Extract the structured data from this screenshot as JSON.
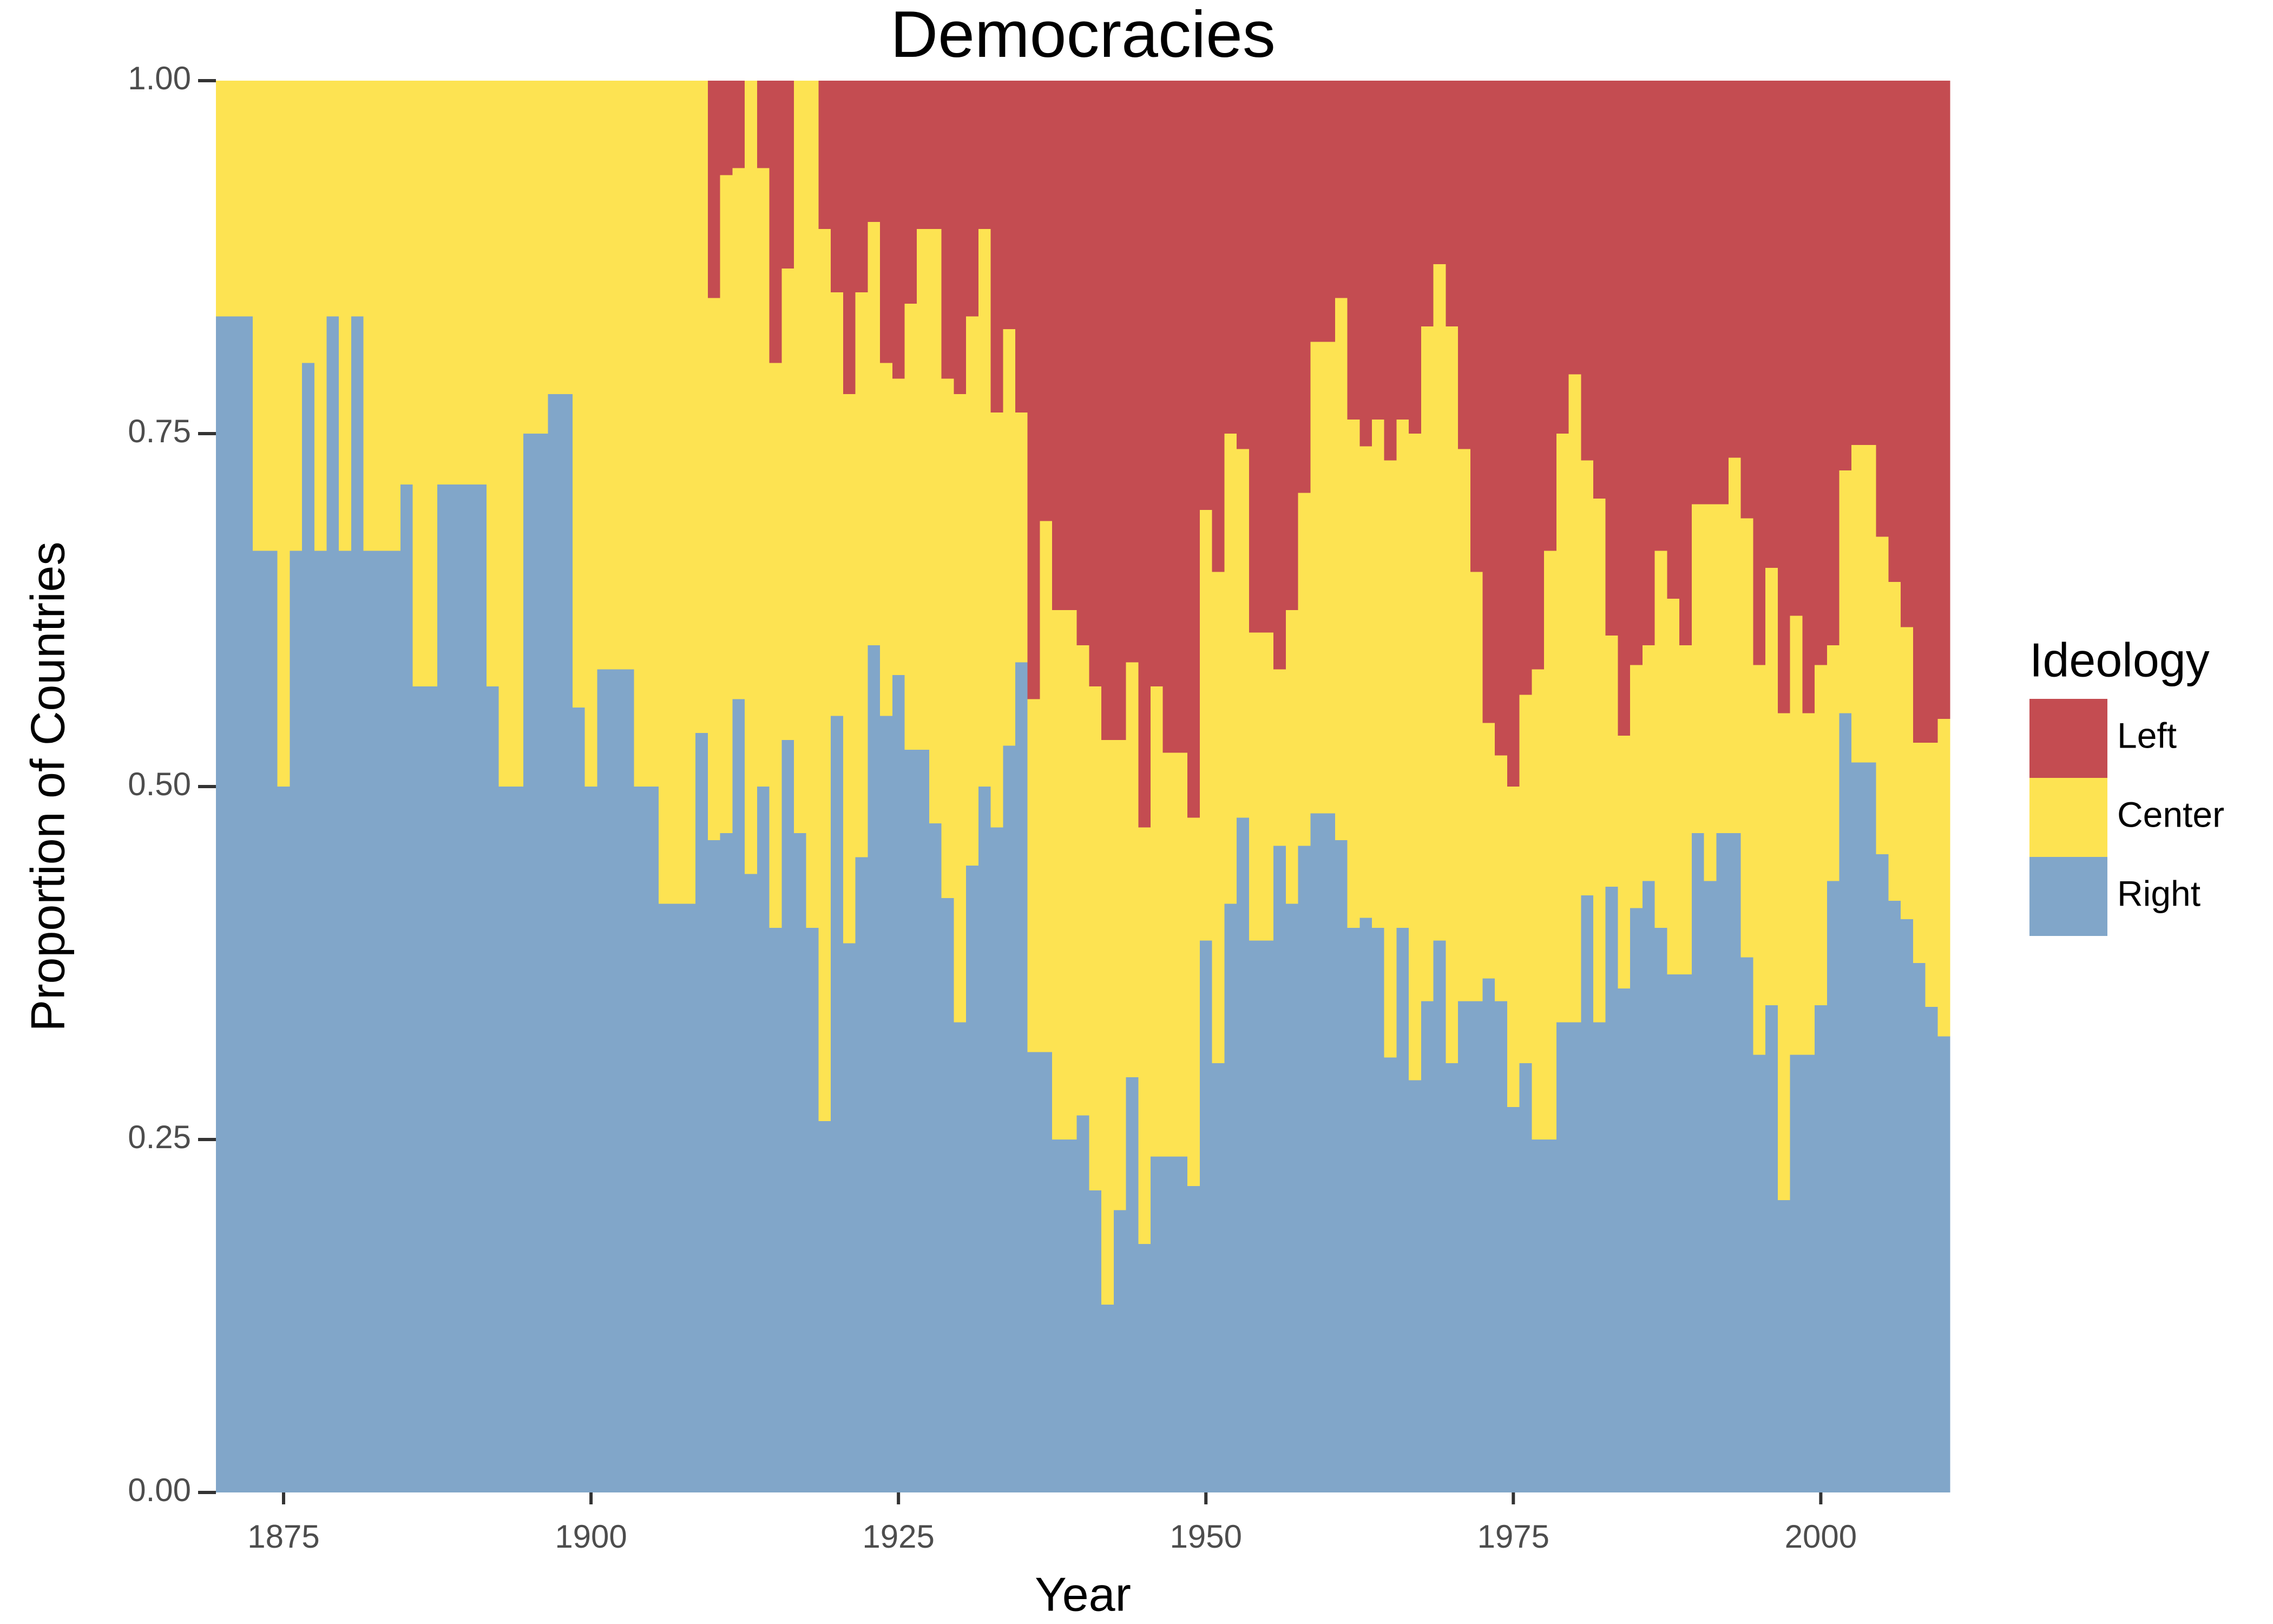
{
  "chart_data": {
    "type": "stacked_bar",
    "title": "Democracies",
    "x_label": "Year",
    "y_label": "Proportion of Countries",
    "legend_title": "Ideology",
    "legend": "right",
    "x": [
      1870,
      1871,
      1872,
      1873,
      1874,
      1875,
      1876,
      1877,
      1878,
      1879,
      1880,
      1881,
      1882,
      1883,
      1884,
      1885,
      1886,
      1887,
      1888,
      1889,
      1890,
      1891,
      1892,
      1893,
      1894,
      1895,
      1896,
      1897,
      1898,
      1899,
      1900,
      1901,
      1902,
      1903,
      1904,
      1905,
      1906,
      1907,
      1908,
      1909,
      1910,
      1911,
      1912,
      1913,
      1914,
      1915,
      1916,
      1917,
      1918,
      1919,
      1920,
      1921,
      1922,
      1923,
      1924,
      1925,
      1926,
      1927,
      1928,
      1929,
      1930,
      1931,
      1932,
      1933,
      1934,
      1935,
      1936,
      1937,
      1938,
      1939,
      1940,
      1941,
      1942,
      1943,
      1944,
      1945,
      1946,
      1947,
      1948,
      1949,
      1950,
      1951,
      1952,
      1953,
      1954,
      1955,
      1956,
      1957,
      1958,
      1959,
      1960,
      1961,
      1962,
      1963,
      1964,
      1965,
      1966,
      1967,
      1968,
      1969,
      1970,
      1971,
      1972,
      1973,
      1974,
      1975,
      1976,
      1977,
      1978,
      1979,
      1980,
      1981,
      1982,
      1983,
      1984,
      1985,
      1986,
      1987,
      1988,
      1989,
      1990,
      1991,
      1992,
      1993,
      1994,
      1995,
      1996,
      1997,
      1998,
      1999,
      2000,
      2001,
      2002,
      2003,
      2004,
      2005,
      2006,
      2007,
      2008,
      2009,
      2010
    ],
    "series": [
      {
        "name": "Left",
        "color": "#c44c51",
        "values": [
          0,
          0,
          0,
          0,
          0,
          0,
          0,
          0,
          0,
          0,
          0,
          0,
          0,
          0,
          0,
          0,
          0,
          0,
          0,
          0,
          0,
          0,
          0,
          0,
          0,
          0,
          0,
          0,
          0,
          0,
          0,
          0,
          0,
          0,
          0,
          0,
          0,
          0,
          0,
          0,
          0.154,
          0.067,
          0.062,
          0,
          0.062,
          0.2,
          0.133,
          0,
          0,
          0.105,
          0.15,
          0.222,
          0.15,
          0.1,
          0.2,
          0.211,
          0.158,
          0.105,
          0.105,
          0.211,
          0.222,
          0.167,
          0.105,
          0.235,
          0.176,
          0.235,
          0.438,
          0.312,
          0.375,
          0.375,
          0.4,
          0.429,
          0.467,
          0.467,
          0.412,
          0.529,
          0.429,
          0.476,
          0.476,
          0.522,
          0.304,
          0.348,
          0.25,
          0.261,
          0.391,
          0.391,
          0.417,
          0.375,
          0.292,
          0.185,
          0.185,
          0.154,
          0.24,
          0.259,
          0.24,
          0.269,
          0.24,
          0.25,
          0.174,
          0.13,
          0.174,
          0.261,
          0.348,
          0.455,
          0.478,
          0.5,
          0.435,
          0.417,
          0.333,
          0.25,
          0.208,
          0.269,
          0.296,
          0.393,
          0.464,
          0.414,
          0.4,
          0.333,
          0.367,
          0.4,
          0.3,
          0.3,
          0.3,
          0.267,
          0.31,
          0.414,
          0.345,
          0.448,
          0.379,
          0.448,
          0.414,
          0.4,
          0.276,
          0.258,
          0.258,
          0.323,
          0.355,
          0.387,
          0.469,
          0.469,
          0.452
        ]
      },
      {
        "name": "Center",
        "color": "#fde352",
        "values": [
          0.167,
          0.167,
          0.167,
          0.333,
          0.333,
          0.5,
          0.333,
          0.2,
          0.333,
          0.167,
          0.333,
          0.167,
          0.333,
          0.333,
          0.333,
          0.286,
          0.429,
          0.429,
          0.286,
          0.286,
          0.286,
          0.286,
          0.429,
          0.5,
          0.5,
          0.25,
          0.25,
          0.222,
          0.222,
          0.444,
          0.5,
          0.417,
          0.417,
          0.417,
          0.5,
          0.5,
          0.583,
          0.583,
          0.583,
          0.462,
          0.384,
          0.466,
          0.376,
          0.562,
          0.438,
          0.4,
          0.334,
          0.533,
          0.6,
          0.632,
          0.3,
          0.389,
          0.4,
          0.3,
          0.25,
          0.21,
          0.316,
          0.369,
          0.421,
          0.368,
          0.445,
          0.389,
          0.395,
          0.294,
          0.295,
          0.177,
          0.25,
          0.376,
          0.375,
          0.375,
          0.333,
          0.357,
          0.4,
          0.333,
          0.294,
          0.295,
          0.333,
          0.286,
          0.286,
          0.261,
          0.305,
          0.348,
          0.333,
          0.261,
          0.218,
          0.218,
          0.125,
          0.208,
          0.25,
          0.334,
          0.334,
          0.384,
          0.36,
          0.334,
          0.36,
          0.423,
          0.36,
          0.458,
          0.478,
          0.479,
          0.522,
          0.391,
          0.304,
          0.181,
          0.174,
          0.227,
          0.261,
          0.333,
          0.417,
          0.417,
          0.459,
          0.308,
          0.371,
          0.178,
          0.179,
          0.172,
          0.167,
          0.267,
          0.266,
          0.233,
          0.233,
          0.267,
          0.233,
          0.266,
          0.311,
          0.276,
          0.31,
          0.345,
          0.311,
          0.242,
          0.241,
          0.167,
          0.172,
          0.225,
          0.225,
          0.225,
          0.226,
          0.207,
          0.156,
          0.187,
          0.225
        ]
      },
      {
        "name": "Right",
        "color": "#81a6c9",
        "values": [
          0.833,
          0.833,
          0.833,
          0.667,
          0.667,
          0.5,
          0.667,
          0.8,
          0.667,
          0.833,
          0.667,
          0.833,
          0.667,
          0.667,
          0.667,
          0.714,
          0.571,
          0.571,
          0.714,
          0.714,
          0.714,
          0.714,
          0.571,
          0.5,
          0.5,
          0.75,
          0.75,
          0.778,
          0.778,
          0.556,
          0.5,
          0.583,
          0.583,
          0.583,
          0.5,
          0.5,
          0.417,
          0.417,
          0.417,
          0.538,
          0.462,
          0.467,
          0.562,
          0.438,
          0.5,
          0.4,
          0.533,
          0.467,
          0.4,
          0.263,
          0.55,
          0.389,
          0.45,
          0.6,
          0.55,
          0.579,
          0.526,
          0.526,
          0.474,
          0.421,
          0.333,
          0.444,
          0.5,
          0.471,
          0.529,
          0.588,
          0.312,
          0.312,
          0.25,
          0.25,
          0.267,
          0.214,
          0.133,
          0.2,
          0.294,
          0.176,
          0.238,
          0.238,
          0.238,
          0.217,
          0.391,
          0.304,
          0.417,
          0.478,
          0.391,
          0.391,
          0.458,
          0.417,
          0.458,
          0.481,
          0.481,
          0.462,
          0.4,
          0.407,
          0.4,
          0.308,
          0.4,
          0.292,
          0.348,
          0.391,
          0.304,
          0.348,
          0.348,
          0.364,
          0.348,
          0.273,
          0.304,
          0.25,
          0.25,
          0.333,
          0.333,
          0.423,
          0.333,
          0.429,
          0.357,
          0.414,
          0.433,
          0.4,
          0.367,
          0.367,
          0.467,
          0.433,
          0.467,
          0.467,
          0.379,
          0.31,
          0.345,
          0.207,
          0.31,
          0.31,
          0.345,
          0.433,
          0.552,
          0.517,
          0.517,
          0.452,
          0.419,
          0.406,
          0.375,
          0.344,
          0.323
        ]
      }
    ],
    "xlim": [
      1869.5,
      2010.5
    ],
    "xticks": [
      1875,
      1900,
      1925,
      1950,
      1975,
      2000
    ],
    "ylim": [
      0,
      1
    ],
    "yticks": [
      {
        "value": 0,
        "label": "0.00"
      },
      {
        "value": 0.25,
        "label": "0.25"
      },
      {
        "value": 0.5,
        "label": "0.50"
      },
      {
        "value": 0.75,
        "label": "0.75"
      },
      {
        "value": 1,
        "label": "1.00"
      }
    ]
  }
}
